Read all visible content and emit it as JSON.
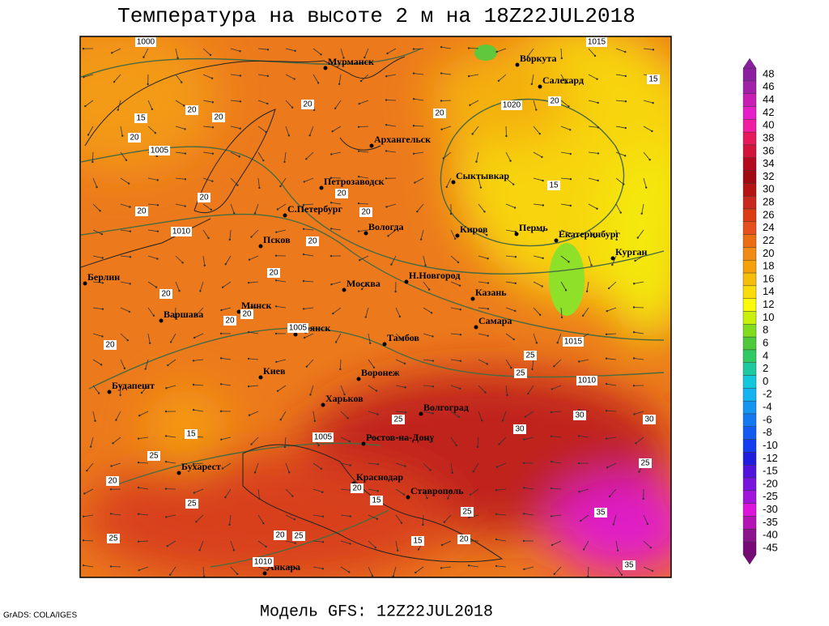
{
  "header": {
    "title": "Температура на высоте 2 м на 18Z22JUL2018"
  },
  "footer": {
    "model": "Модель GFS: 12Z22JUL2018",
    "credit": "GrADS: COLA/IGES"
  },
  "legend": {
    "levels": [
      48,
      46,
      44,
      42,
      40,
      38,
      36,
      34,
      32,
      30,
      28,
      26,
      24,
      22,
      20,
      18,
      16,
      14,
      12,
      10,
      8,
      6,
      4,
      2,
      0,
      -2,
      -4,
      -6,
      -8,
      -10,
      -12,
      -15,
      -20,
      -25,
      -30,
      -35,
      -40,
      -45
    ],
    "colors": [
      "#8c1fa0",
      "#a020a8",
      "#c81eb4",
      "#e61ec8",
      "#f01ea0",
      "#e6195a",
      "#d2143c",
      "#b40a1e",
      "#a00a14",
      "#b41414",
      "#c8281e",
      "#dc3c14",
      "#e6501e",
      "#eb6e14",
      "#f08c14",
      "#f5a00a",
      "#f5be0a",
      "#fadc0a",
      "#fafa0a",
      "#c8f00a",
      "#82dc1e",
      "#50c83c",
      "#32c864",
      "#1ec8a0",
      "#14c8dc",
      "#14b4f0",
      "#1496f0",
      "#1478f0",
      "#145af0",
      "#143cf0",
      "#1e1edc",
      "#5014dc",
      "#7814dc",
      "#a014dc",
      "#dc14dc",
      "#b414b4",
      "#8c148c",
      "#780a78"
    ]
  },
  "cities": [
    "Мурманск",
    "Воркута",
    "Салехард",
    "Архангельск",
    "Сыктывкар",
    "Петрозаводск",
    "С.Петербург",
    "Вологда",
    "Киров",
    "Пермь",
    "Екатеринбург",
    "Курган",
    "Псков",
    "Берлин",
    "Н.Новгород",
    "Москва",
    "Казань",
    "Минск",
    "Варшава",
    "Самара",
    "Брянск",
    "Тамбов",
    "Воронеж",
    "Киев",
    "Будапешт",
    "Харьков",
    "Волгоград",
    "Ростов-на-Дону",
    "Бухарест",
    "Краснодар",
    "Ставрополь",
    "Анкара"
  ],
  "isobar_labels": [
    1000,
    1015,
    1020,
    1005,
    1010,
    1005,
    1015,
    1010,
    1005,
    1010
  ],
  "isotherm_labels": [
    20,
    20,
    20,
    20,
    20,
    15,
    15,
    20,
    20,
    20,
    20,
    20,
    20,
    20,
    15,
    20,
    20,
    20,
    20,
    25,
    25,
    30,
    30,
    30,
    25,
    35,
    35,
    25,
    15,
    20,
    25,
    25,
    20,
    15,
    25,
    20,
    20,
    25,
    15,
    25
  ]
}
